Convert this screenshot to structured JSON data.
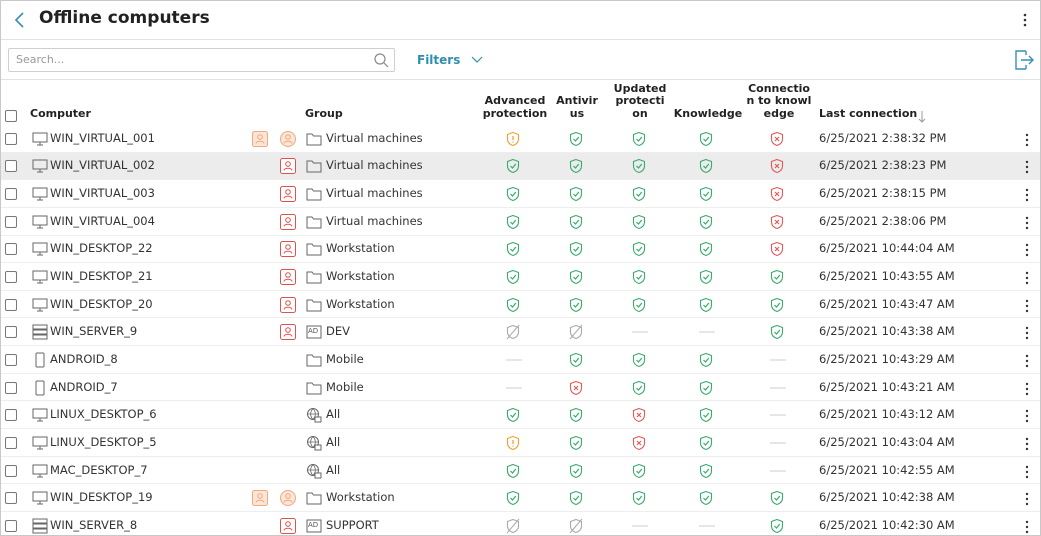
{
  "header": {
    "title": "Offline computers"
  },
  "toolbar": {
    "search_placeholder": "Search...",
    "filters": "Filters"
  },
  "table": {
    "columns": [
      "Computer",
      "Group",
      "Advanced protection",
      "Antivirus",
      "Updated protection",
      "Knowledge",
      "Connection to knowledge",
      "Last connection"
    ],
    "rows": [
      {
        "computer": "WIN_VIRTUAL_001",
        "group": "Virtual machines",
        "last_connection": "6/25/2021 2:38:32 PM"
      },
      {
        "computer": "WIN_VIRTUAL_002",
        "group": "Virtual machines",
        "last_connection": "6/25/2021 2:38:23 PM"
      },
      {
        "computer": "WIN_VIRTUAL_003",
        "group": "Virtual machines",
        "last_connection": "6/25/2021 2:38:15 PM"
      },
      {
        "computer": "WIN_VIRTUAL_004",
        "group": "Virtual machines",
        "last_connection": "6/25/2021 2:38:06 PM"
      },
      {
        "computer": "WIN_DESKTOP_22",
        "group": "Workstation",
        "last_connection": "6/25/2021 10:44:04 AM"
      },
      {
        "computer": "WIN_DESKTOP_21",
        "group": "Workstation",
        "last_connection": "6/25/2021 10:43:55 AM"
      },
      {
        "computer": "WIN_DESKTOP_20",
        "group": "Workstation",
        "last_connection": "6/25/2021 10:43:47 AM"
      },
      {
        "computer": "WIN_SERVER_9",
        "group_tag": "AD",
        "group": "DEV",
        "last_connection": "6/25/2021 10:43:38 AM"
      },
      {
        "computer": "ANDROID_8",
        "group": "Mobile",
        "last_connection": "6/25/2021 10:43:29 AM"
      },
      {
        "computer": "ANDROID_7",
        "group": "Mobile",
        "last_connection": "6/25/2021 10:43:21 AM"
      },
      {
        "computer": "LINUX_DESKTOP_6",
        "group": "All",
        "last_connection": "6/25/2021 10:43:12 AM"
      },
      {
        "computer": "LINUX_DESKTOP_5",
        "group": "All",
        "last_connection": "6/25/2021 10:43:04 AM"
      },
      {
        "computer": "MAC_DESKTOP_7",
        "group": "All",
        "last_connection": "6/25/2021 10:42:55 AM"
      },
      {
        "computer": "WIN_DESKTOP_19",
        "group": "Workstation",
        "last_connection": "6/25/2021 10:42:38 AM"
      },
      {
        "computer": "WIN_SERVER_8",
        "group_tag": "AD",
        "group": "SUPPORT",
        "last_connection": "6/25/2021 10:42:30 AM"
      }
    ]
  }
}
